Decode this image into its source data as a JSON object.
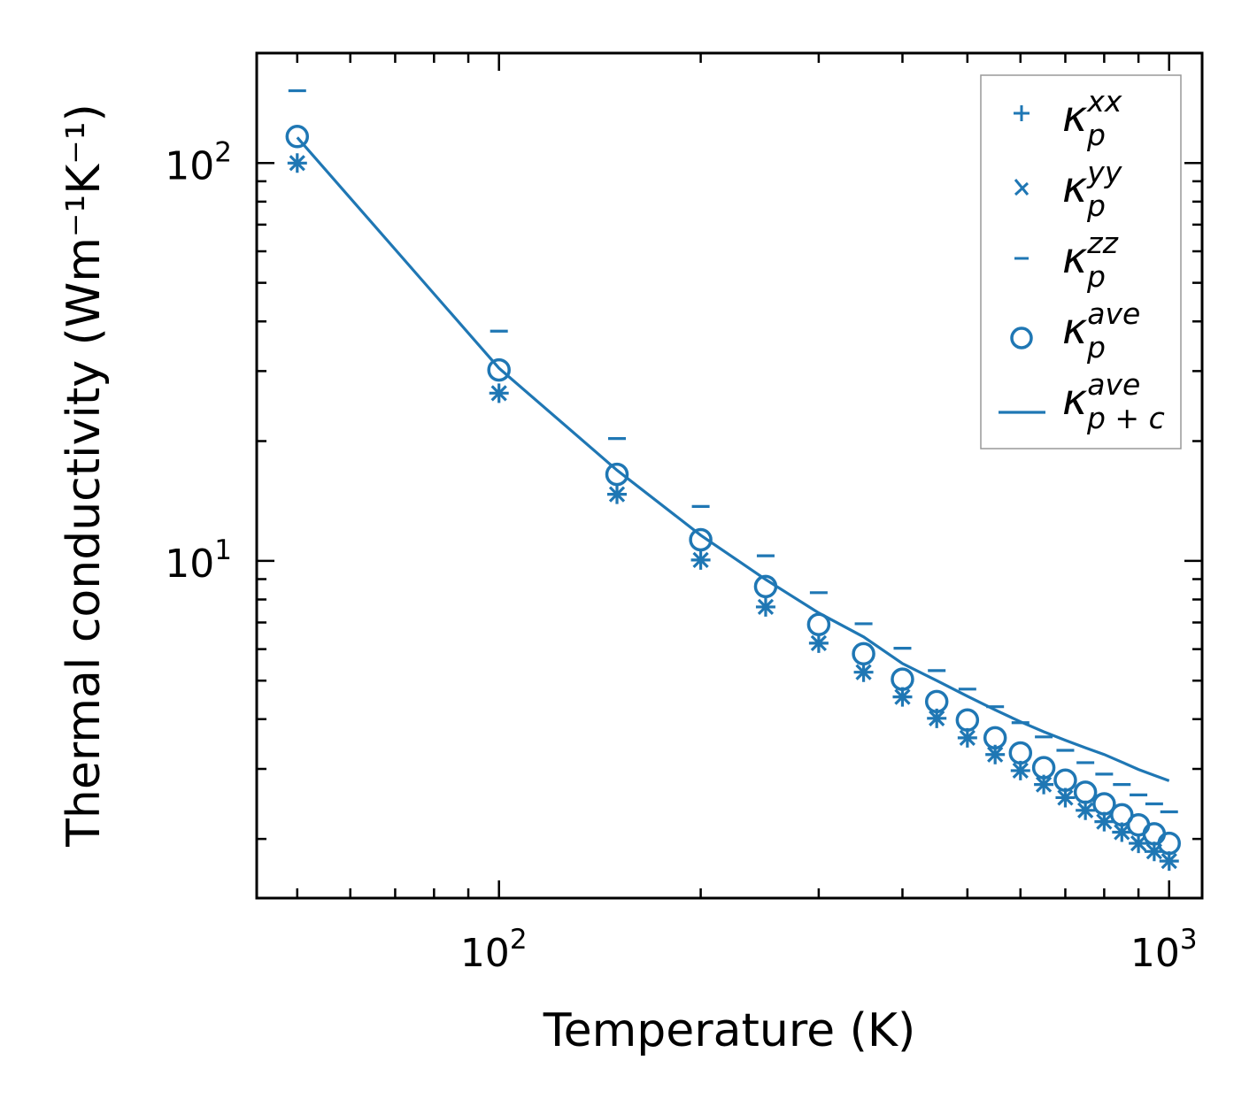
{
  "chart_data": {
    "type": "scatter",
    "title": "",
    "xlabel": "Temperature (K)",
    "ylabel": "Thermal conductivity (Wm⁻¹K⁻¹)",
    "xscale": "log",
    "yscale": "log",
    "xlim": [
      43.5,
      1120
    ],
    "ylim": [
      1.42,
      189
    ],
    "x_ticks": [
      {
        "value": 100,
        "base": "10",
        "exp": "2"
      },
      {
        "value": 1000,
        "base": "10",
        "exp": "3"
      }
    ],
    "y_ticks": [
      {
        "value": 10,
        "base": "10",
        "exp": "1"
      },
      {
        "value": 100,
        "base": "10",
        "exp": "2"
      }
    ],
    "color": "#1f77b4",
    "legend_position": "top-right",
    "x": [
      50,
      100,
      150,
      200,
      250,
      300,
      350,
      400,
      450,
      500,
      550,
      600,
      650,
      700,
      750,
      800,
      850,
      900,
      950,
      1000
    ],
    "series": [
      {
        "name": "κ_p^xx",
        "label_main": "κ",
        "label_sub": "p",
        "label_sup": "xx",
        "marker": "plus",
        "values": [
          100,
          26.4,
          14.7,
          10.05,
          7.66,
          6.21,
          5.25,
          4.55,
          4.02,
          3.59,
          3.26,
          2.97,
          2.74,
          2.54,
          2.36,
          2.21,
          2.08,
          1.95,
          1.86,
          1.76
        ]
      },
      {
        "name": "κ_p^yy",
        "label_main": "κ",
        "label_sub": "p",
        "label_sup": "yy",
        "marker": "x",
        "values": [
          100,
          26.4,
          14.7,
          10.05,
          7.66,
          6.21,
          5.25,
          4.55,
          4.02,
          3.59,
          3.26,
          2.97,
          2.74,
          2.54,
          2.36,
          2.21,
          2.08,
          1.95,
          1.86,
          1.76
        ]
      },
      {
        "name": "κ_p^zz",
        "label_main": "κ",
        "label_sub": "p",
        "label_sup": "zz",
        "marker": "hline",
        "values": [
          152,
          37.8,
          20.3,
          13.7,
          10.3,
          8.32,
          6.95,
          6.03,
          5.3,
          4.76,
          4.3,
          3.92,
          3.61,
          3.34,
          3.11,
          2.91,
          2.74,
          2.58,
          2.45,
          2.34
        ]
      },
      {
        "name": "κ_p^ave",
        "label_main": "κ",
        "label_sub": "p",
        "label_sup": "ave",
        "marker": "circle",
        "values": [
          116.6,
          30.2,
          16.5,
          11.3,
          8.62,
          6.92,
          5.84,
          5.04,
          4.43,
          3.98,
          3.59,
          3.29,
          3.02,
          2.81,
          2.62,
          2.45,
          2.3,
          2.17,
          2.06,
          1.95
        ]
      },
      {
        "name": "κ_p+c^ave",
        "label_main": "κ",
        "label_sub": "p + c",
        "label_sup": "ave",
        "marker": "line",
        "values": [
          116,
          30.5,
          16.9,
          11.6,
          8.98,
          7.4,
          6.44,
          5.52,
          5.0,
          4.57,
          4.22,
          3.94,
          3.72,
          3.54,
          3.39,
          3.26,
          3.12,
          2.99,
          2.89,
          2.8
        ]
      }
    ]
  }
}
